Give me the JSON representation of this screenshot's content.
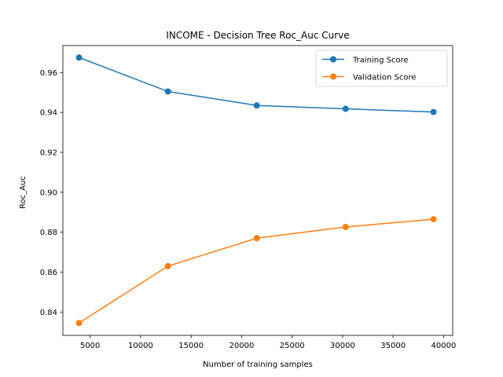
{
  "chart_data": {
    "type": "line",
    "title": "INCOME - Decision Tree Roc_Auc Curve",
    "xlabel": "Number of training samples",
    "ylabel": "Roc_Auc",
    "xlim": [
      2300,
      40900
    ],
    "ylim": [
      0.8283,
      0.9735
    ],
    "xticks": [
      5000,
      10000,
      15000,
      20000,
      25000,
      30000,
      35000,
      40000
    ],
    "xtick_labels": [
      "5000",
      "10000",
      "15000",
      "20000",
      "25000",
      "30000",
      "35000",
      "40000"
    ],
    "yticks": [
      0.84,
      0.86,
      0.88,
      0.9,
      0.92,
      0.94,
      0.96
    ],
    "ytick_labels": [
      "0.84",
      "0.86",
      "0.88",
      "0.90",
      "0.92",
      "0.94",
      "0.96"
    ],
    "grid": false,
    "legend_position": "top-right",
    "x": [
      3900,
      12700,
      21500,
      30300,
      39000
    ],
    "series": [
      {
        "name": "Training Score",
        "color": "#1f77b4",
        "values": [
          0.9675,
          0.9505,
          0.9435,
          0.9418,
          0.9402
        ]
      },
      {
        "name": "Validation Score",
        "color": "#ff7f0e",
        "values": [
          0.8345,
          0.863,
          0.877,
          0.8826,
          0.8865
        ]
      }
    ]
  }
}
